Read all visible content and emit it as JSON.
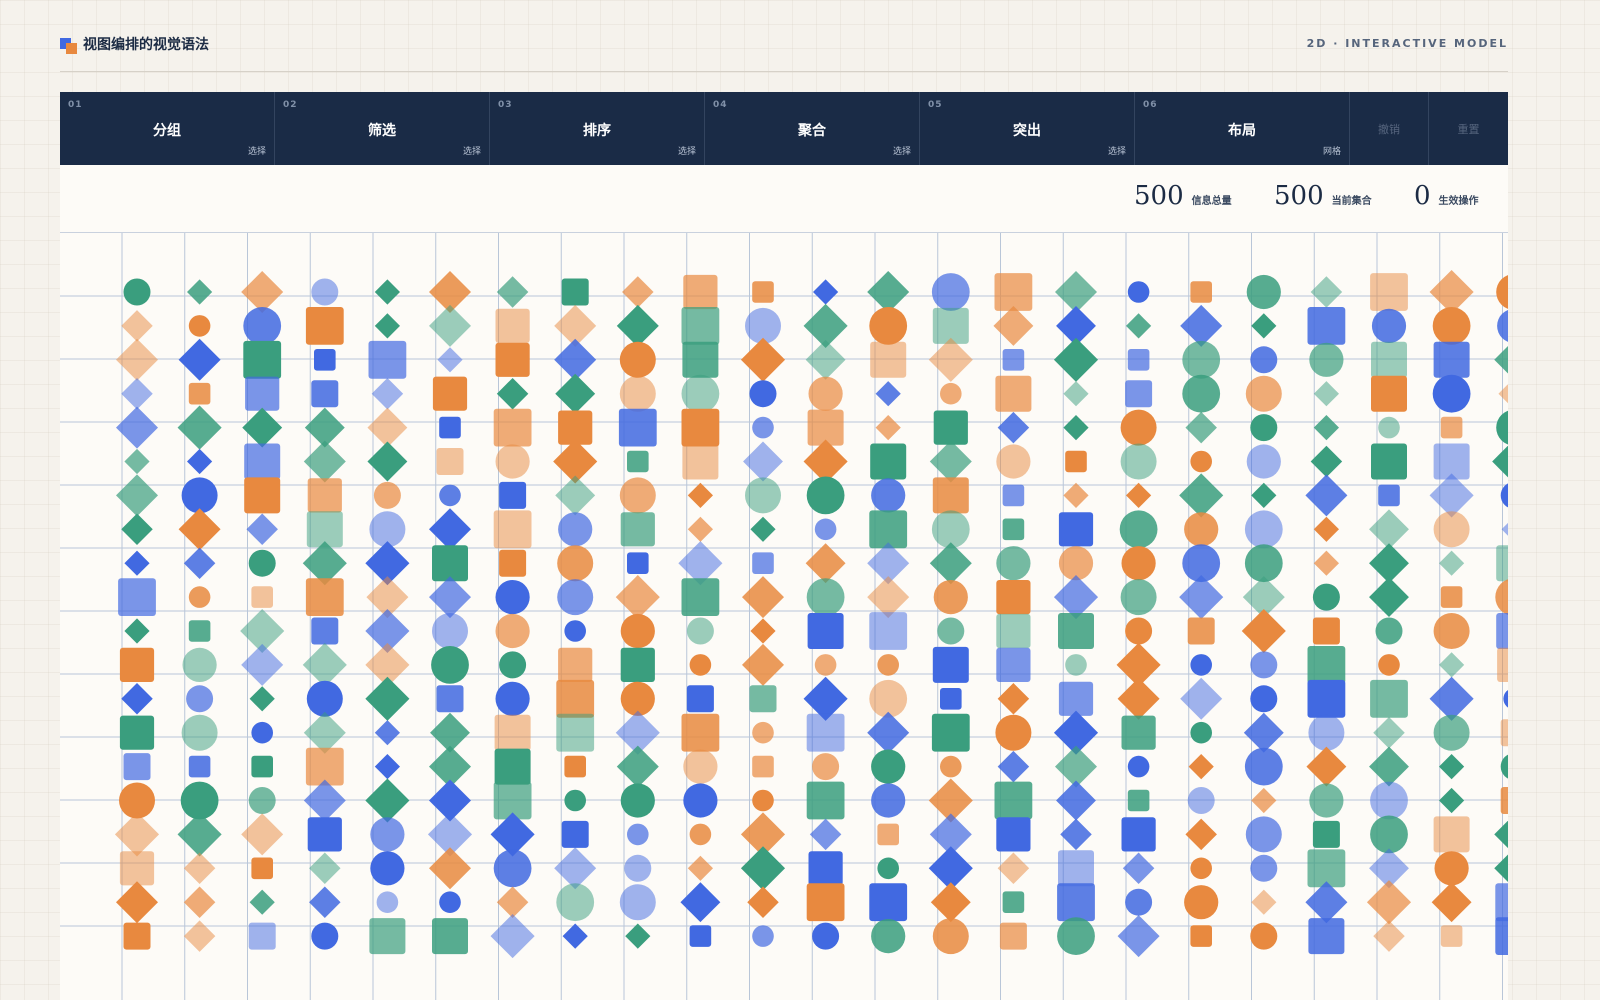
{
  "header": {
    "title": "视图编排的视觉语法",
    "tag": "2D · INTERACTIVE MODEL"
  },
  "toolbar": {
    "operations": [
      {
        "num": "01",
        "label": "分组",
        "mode": "选择"
      },
      {
        "num": "02",
        "label": "筛选",
        "mode": "选择"
      },
      {
        "num": "03",
        "label": "排序",
        "mode": "选择"
      },
      {
        "num": "04",
        "label": "聚合",
        "mode": "选择"
      },
      {
        "num": "05",
        "label": "突出",
        "mode": "选择"
      },
      {
        "num": "06",
        "label": "布局",
        "mode": "网格"
      }
    ],
    "undo_label": "撤销",
    "reset_label": "重置"
  },
  "stats": [
    {
      "value": "500",
      "label": "信息总量"
    },
    {
      "value": "500",
      "label": "当前集合"
    },
    {
      "value": "0",
      "label": "生效操作"
    }
  ],
  "grid": {
    "columns": 25,
    "rows": 20,
    "total_items": 500,
    "palette": {
      "blue": "#4169e1",
      "orange": "#e8893f",
      "green": "#3a9e7e"
    },
    "shapes": [
      "circle",
      "square",
      "diamond"
    ]
  }
}
